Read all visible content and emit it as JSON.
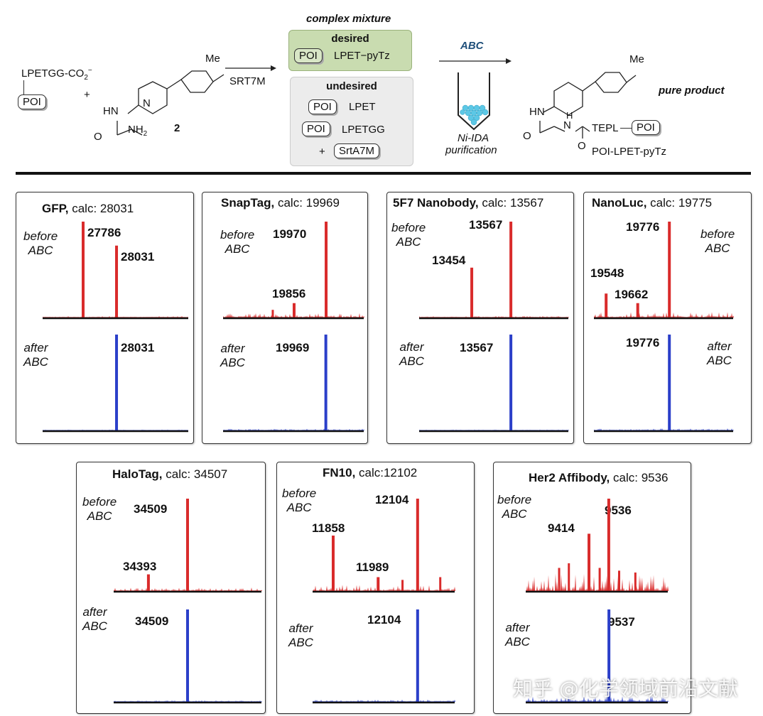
{
  "scheme": {
    "substrate_tag": "LPETGG-CO",
    "substrate_sub": "2",
    "substrate_sup": "−",
    "poi": "POI",
    "plus": "+",
    "compound_number": "2",
    "me": "Me",
    "hn": "HN",
    "nh2": "NH",
    "nh2_sub": "2",
    "o": "O",
    "n": "N",
    "h": "H",
    "enzyme": "SRT7M",
    "mixture_title": "complex mixture",
    "desired_title": "desired",
    "desired_product": "LPET−pyTz",
    "undesired_title": "undesired",
    "undesired_1": "LPET",
    "undesired_2": "LPETGG",
    "enzyme_pill": "SrtA7M",
    "reagent": "ABC",
    "purification_1": "Ni-IDA",
    "purification_2": "purification",
    "product_tepl": "TEPL",
    "product_name": "POI-LPET-pyTz",
    "pure_product": "pure product",
    "colors": {
      "desired_bg": "#c9dcb0",
      "undesired_bg": "#ececec",
      "resin": "#5cc8e6",
      "abc": "#1f4f7a"
    }
  },
  "labels": {
    "before_1": "before",
    "before_2": "ABC",
    "after_1": "after",
    "after_2": "ABC"
  },
  "watermark": "知乎 @化学领域前沿文献",
  "chart_data": [
    {
      "type": "bar",
      "title_name": "GFP,",
      "title_calc": "calc: 28031",
      "xlim": [
        27489,
        28557
      ],
      "before": [
        {
          "mass": 27786,
          "intensity": 1.0,
          "label": "27786"
        },
        {
          "mass": 28031,
          "intensity": 0.75,
          "label": "28031"
        }
      ],
      "after": [
        {
          "mass": 28031,
          "intensity": 1.0,
          "label": "28031"
        }
      ]
    },
    {
      "type": "bar",
      "title_name": "SnapTag,",
      "title_calc": "calc: 19969",
      "xlim": [
        19603,
        20104
      ],
      "before": [
        {
          "mass": 19970,
          "intensity": 1.0,
          "label": "19970"
        },
        {
          "mass": 19856,
          "intensity": 0.15,
          "label": "19856"
        }
      ],
      "after": [
        {
          "mass": 19969,
          "intensity": 1.0,
          "label": "19969"
        }
      ]
    },
    {
      "type": "bar",
      "title_name": "5F7 Nanobody,",
      "title_calc": "calc: 13567",
      "xlim": [
        13302,
        13733
      ],
      "before": [
        {
          "mass": 13567,
          "intensity": 1.0,
          "label": "13567"
        },
        {
          "mass": 13454,
          "intensity": 0.52,
          "label": "13454"
        }
      ],
      "after": [
        {
          "mass": 13567,
          "intensity": 1.0,
          "label": "13567"
        }
      ]
    },
    {
      "type": "bar",
      "title_name": "NanoLuc,",
      "title_calc": "calc: 19775",
      "xlim": [
        19504,
        20006
      ],
      "before": [
        {
          "mass": 19776,
          "intensity": 1.0,
          "label": "19776"
        },
        {
          "mass": 19548,
          "intensity": 0.25,
          "label": "19548"
        },
        {
          "mass": 19662,
          "intensity": 0.15,
          "label": "19662"
        }
      ],
      "after": [
        {
          "mass": 19776,
          "intensity": 1.0,
          "label": "19776"
        }
      ]
    },
    {
      "type": "bar",
      "title_name": "HaloTag,",
      "title_calc": "calc: 34507",
      "xlim": [
        34290,
        34728
      ],
      "before": [
        {
          "mass": 34509,
          "intensity": 1.0,
          "label": "34509"
        },
        {
          "mass": 34393,
          "intensity": 0.18,
          "label": "34393"
        }
      ],
      "after": [
        {
          "mass": 34509,
          "intensity": 1.0,
          "label": "34509"
        }
      ]
    },
    {
      "type": "bar",
      "title_name": "FN10,",
      "title_calc": "calc:12102",
      "xlim": [
        11798,
        12212
      ],
      "before": [
        {
          "mass": 12104,
          "intensity": 1.0,
          "label": "12104"
        },
        {
          "mass": 11858,
          "intensity": 0.6,
          "label": "11858"
        },
        {
          "mass": 11989,
          "intensity": 0.15,
          "label": "11989"
        }
      ],
      "after": [
        {
          "mass": 12104,
          "intensity": 1.0,
          "label": "12104"
        }
      ]
    },
    {
      "type": "bar",
      "title_name": "Her2 Affibody,",
      "title_calc": "calc: 9536",
      "xlim": [
        9024,
        9900
      ],
      "before": [
        {
          "mass": 9536,
          "intensity": 1.0,
          "label": "9536"
        },
        {
          "mass": 9414,
          "intensity": 0.62,
          "label": "9414"
        }
      ],
      "after": [
        {
          "mass": 9537,
          "intensity": 1.0,
          "label": "9537"
        }
      ]
    }
  ],
  "series_colors": {
    "before": "#d92b2b",
    "after": "#2b3fc9"
  }
}
